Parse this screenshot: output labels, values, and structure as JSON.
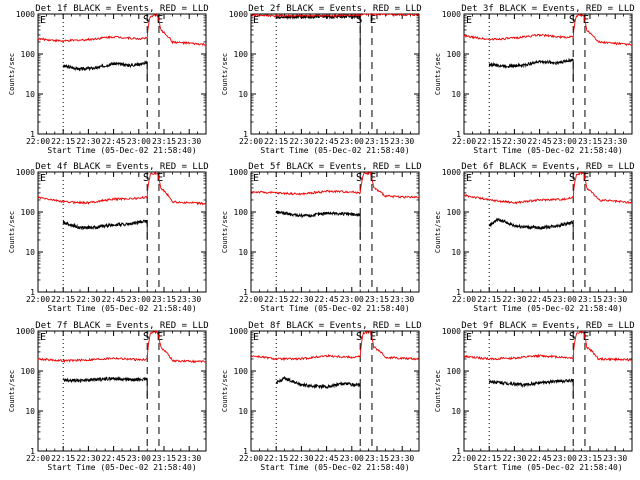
{
  "figure": {
    "panel_title_suffix": "BLACK = Events, RED = LLD",
    "xlabel": "Start Time (05-Dec-02 21:58:40)",
    "ylabel": "Counts/sec",
    "marker_S": "S",
    "marker_E": "E",
    "colors": {
      "events": "#000000",
      "lld": "#ee0000",
      "axes": "#000000"
    }
  },
  "chart_data": [
    {
      "type": "line",
      "title": "Det 1f BLACK = Events, RED = LLD",
      "xlabel": "Start Time (05-Dec-02 21:58:40)",
      "ylabel": "Counts/sec",
      "x_tick_labels": [
        "22:00",
        "22:15",
        "22:30",
        "22:45",
        "23:00",
        "23:15",
        "23:30"
      ],
      "y_tick_labels": [
        "1",
        "10",
        "100",
        "1000"
      ],
      "y_scale": "log",
      "ylim": [
        1,
        1000
      ],
      "xlim": [
        "22:00",
        "23:40"
      ],
      "dotted_line": "22:15",
      "dashed_lines": [
        "23:05",
        "23:12"
      ],
      "series": [
        {
          "name": "BLACK",
          "color": "#000000",
          "start": "22:15",
          "end": "23:05",
          "x": [
            "22:15",
            "22:25",
            "22:35",
            "22:45",
            "22:55",
            "23:05"
          ],
          "y": [
            50,
            42,
            45,
            58,
            52,
            60
          ]
        },
        {
          "name": "RED",
          "color": "#ee0000",
          "start": "22:00",
          "end": "23:40",
          "x": [
            "22:00",
            "22:15",
            "22:30",
            "22:45",
            "23:00",
            "23:05",
            "23:07",
            "23:11",
            "23:13",
            "23:20",
            "23:40"
          ],
          "y": [
            240,
            210,
            230,
            270,
            240,
            250,
            900,
            950,
            400,
            200,
            170
          ]
        }
      ]
    },
    {
      "type": "line",
      "title": "Det 2f BLACK = Events, RED = LLD",
      "xlabel": "Start Time (05-Dec-02 21:58:40)",
      "ylabel": "Counts/sec",
      "x_tick_labels": [
        "22:00",
        "22:15",
        "22:30",
        "22:45",
        "23:00",
        "23:15",
        "23:30"
      ],
      "y_tick_labels": [
        "1",
        "10",
        "100",
        "1000"
      ],
      "y_scale": "log",
      "ylim": [
        1,
        1000
      ],
      "xlim": [
        "22:00",
        "23:40"
      ],
      "dotted_line": "22:15",
      "dashed_lines": [
        "23:05",
        "23:12"
      ],
      "series": [
        {
          "name": "BLACK",
          "color": "#000000",
          "start": "22:15",
          "end": "23:05",
          "x": [
            "22:15",
            "22:25",
            "22:35",
            "22:45",
            "22:55",
            "23:05"
          ],
          "y": [
            850,
            850,
            850,
            860,
            860,
            870
          ]
        },
        {
          "name": "RED",
          "color": "#ee0000",
          "start": "22:00",
          "end": "23:40",
          "x": [
            "22:00",
            "22:15",
            "22:30",
            "22:45",
            "23:00",
            "23:05",
            "23:07",
            "23:11",
            "23:13",
            "23:20",
            "23:40"
          ],
          "y": [
            950,
            900,
            900,
            910,
            920,
            930,
            1000,
            1000,
            1000,
            950,
            950
          ]
        }
      ]
    },
    {
      "type": "line",
      "title": "Det 3f BLACK = Events, RED = LLD",
      "xlabel": "Start Time (05-Dec-02 21:58:40)",
      "ylabel": "Counts/sec",
      "x_tick_labels": [
        "22:00",
        "22:15",
        "22:30",
        "22:45",
        "23:00",
        "23:15",
        "23:30"
      ],
      "y_tick_labels": [
        "1",
        "10",
        "100",
        "1000"
      ],
      "y_scale": "log",
      "ylim": [
        1,
        1000
      ],
      "xlim": [
        "22:00",
        "23:40"
      ],
      "dotted_line": "22:15",
      "dashed_lines": [
        "23:05",
        "23:12"
      ],
      "series": [
        {
          "name": "BLACK",
          "color": "#000000",
          "start": "22:15",
          "end": "23:05",
          "x": [
            "22:15",
            "22:25",
            "22:35",
            "22:45",
            "22:55",
            "23:05"
          ],
          "y": [
            55,
            50,
            52,
            65,
            60,
            72
          ]
        },
        {
          "name": "RED",
          "color": "#ee0000",
          "start": "22:00",
          "end": "23:40",
          "x": [
            "22:00",
            "22:15",
            "22:30",
            "22:45",
            "23:00",
            "23:05",
            "23:07",
            "23:11",
            "23:13",
            "23:20",
            "23:40"
          ],
          "y": [
            280,
            230,
            250,
            300,
            260,
            270,
            900,
            950,
            400,
            200,
            170
          ]
        }
      ]
    },
    {
      "type": "line",
      "title": "Det 4f BLACK = Events, RED = LLD",
      "xlabel": "Start Time (05-Dec-02 21:58:40)",
      "ylabel": "Counts/sec",
      "x_tick_labels": [
        "22:00",
        "22:15",
        "22:30",
        "22:45",
        "23:00",
        "23:15",
        "23:30"
      ],
      "y_tick_labels": [
        "1",
        "10",
        "100",
        "1000"
      ],
      "y_scale": "log",
      "ylim": [
        1,
        1000
      ],
      "xlim": [
        "22:00",
        "23:40"
      ],
      "dotted_line": "22:15",
      "dashed_lines": [
        "23:05",
        "23:12"
      ],
      "series": [
        {
          "name": "BLACK",
          "color": "#000000",
          "start": "22:15",
          "end": "23:05",
          "x": [
            "22:15",
            "22:25",
            "22:35",
            "22:45",
            "22:55",
            "23:05"
          ],
          "y": [
            55,
            40,
            42,
            48,
            50,
            60
          ]
        },
        {
          "name": "RED",
          "color": "#ee0000",
          "start": "22:00",
          "end": "23:40",
          "x": [
            "22:00",
            "22:15",
            "22:30",
            "22:45",
            "23:00",
            "23:05",
            "23:07",
            "23:11",
            "23:13",
            "23:20",
            "23:40"
          ],
          "y": [
            230,
            180,
            170,
            210,
            220,
            240,
            900,
            950,
            400,
            180,
            160
          ]
        }
      ]
    },
    {
      "type": "line",
      "title": "Det 5f BLACK = Events, RED = LLD",
      "xlabel": "Start Time (05-Dec-02 21:58:40)",
      "ylabel": "Counts/sec",
      "x_tick_labels": [
        "22:00",
        "22:15",
        "22:30",
        "22:45",
        "23:00",
        "23:15",
        "23:30"
      ],
      "y_tick_labels": [
        "1",
        "10",
        "100",
        "1000"
      ],
      "y_scale": "log",
      "ylim": [
        1,
        1000
      ],
      "xlim": [
        "22:00",
        "23:40"
      ],
      "dotted_line": "22:15",
      "dashed_lines": [
        "23:05",
        "23:12"
      ],
      "series": [
        {
          "name": "BLACK",
          "color": "#000000",
          "start": "22:15",
          "end": "23:05",
          "x": [
            "22:15",
            "22:25",
            "22:35",
            "22:45",
            "22:55",
            "23:05"
          ],
          "y": [
            100,
            85,
            80,
            95,
            90,
            85
          ]
        },
        {
          "name": "RED",
          "color": "#ee0000",
          "start": "22:00",
          "end": "23:40",
          "x": [
            "22:00",
            "22:15",
            "22:30",
            "22:45",
            "23:00",
            "23:05",
            "23:07",
            "23:11",
            "23:13",
            "23:20",
            "23:40"
          ],
          "y": [
            320,
            300,
            280,
            330,
            320,
            300,
            900,
            950,
            400,
            250,
            230
          ]
        }
      ]
    },
    {
      "type": "line",
      "title": "Det 6f BLACK = Events, RED = LLD",
      "xlabel": "Start Time (05-Dec-02 21:58:40)",
      "ylabel": "Counts/sec",
      "x_tick_labels": [
        "22:00",
        "22:15",
        "22:30",
        "22:45",
        "23:00",
        "23:15",
        "23:30"
      ],
      "y_tick_labels": [
        "1",
        "10",
        "100",
        "1000"
      ],
      "y_scale": "log",
      "ylim": [
        1,
        1000
      ],
      "xlim": [
        "22:00",
        "23:40"
      ],
      "dotted_line": "22:15",
      "dashed_lines": [
        "23:05",
        "23:12"
      ],
      "series": [
        {
          "name": "BLACK",
          "color": "#000000",
          "start": "22:15",
          "end": "23:05",
          "x": [
            "22:15",
            "22:20",
            "22:30",
            "22:45",
            "22:55",
            "23:05"
          ],
          "y": [
            45,
            65,
            45,
            40,
            45,
            55
          ]
        },
        {
          "name": "RED",
          "color": "#ee0000",
          "start": "22:00",
          "end": "23:40",
          "x": [
            "22:00",
            "22:15",
            "22:30",
            "22:45",
            "23:00",
            "23:05",
            "23:07",
            "23:11",
            "23:13",
            "23:20",
            "23:40"
          ],
          "y": [
            260,
            200,
            170,
            200,
            210,
            230,
            900,
            950,
            400,
            200,
            170
          ]
        }
      ]
    },
    {
      "type": "line",
      "title": "Det 7f BLACK = Events, RED = LLD",
      "xlabel": "Start Time (05-Dec-02 21:58:40)",
      "ylabel": "Counts/sec",
      "x_tick_labels": [
        "22:00",
        "22:15",
        "22:30",
        "22:45",
        "23:00",
        "23:15",
        "23:30"
      ],
      "y_tick_labels": [
        "1",
        "10",
        "100",
        "1000"
      ],
      "y_scale": "log",
      "ylim": [
        1,
        1000
      ],
      "xlim": [
        "22:00",
        "23:40"
      ],
      "dotted_line": "22:15",
      "dashed_lines": [
        "23:05",
        "23:12"
      ],
      "series": [
        {
          "name": "BLACK",
          "color": "#000000",
          "start": "22:15",
          "end": "23:05",
          "x": [
            "22:15",
            "22:25",
            "22:35",
            "22:45",
            "22:55",
            "23:05"
          ],
          "y": [
            60,
            58,
            62,
            65,
            60,
            62
          ]
        },
        {
          "name": "RED",
          "color": "#ee0000",
          "start": "22:00",
          "end": "23:40",
          "x": [
            "22:00",
            "22:15",
            "22:30",
            "22:45",
            "23:00",
            "23:05",
            "23:07",
            "23:11",
            "23:13",
            "23:20",
            "23:40"
          ],
          "y": [
            200,
            180,
            190,
            210,
            190,
            200,
            900,
            950,
            400,
            180,
            170
          ]
        }
      ]
    },
    {
      "type": "line",
      "title": "Det 8f BLACK = Events, RED = LLD",
      "xlabel": "Start Time (05-Dec-02 21:58:40)",
      "ylabel": "Counts/sec",
      "x_tick_labels": [
        "22:00",
        "22:15",
        "22:30",
        "22:45",
        "23:00",
        "23:15",
        "23:30"
      ],
      "y_tick_labels": [
        "1",
        "10",
        "100",
        "1000"
      ],
      "y_scale": "log",
      "ylim": [
        1,
        1000
      ],
      "xlim": [
        "22:00",
        "23:40"
      ],
      "dotted_line": "22:15",
      "dashed_lines": [
        "23:05",
        "23:12"
      ],
      "series": [
        {
          "name": "BLACK",
          "color": "#000000",
          "start": "22:15",
          "end": "23:05",
          "x": [
            "22:15",
            "22:20",
            "22:30",
            "22:45",
            "22:55",
            "23:05"
          ],
          "y": [
            50,
            65,
            45,
            40,
            48,
            45
          ]
        },
        {
          "name": "RED",
          "color": "#ee0000",
          "start": "22:00",
          "end": "23:40",
          "x": [
            "22:00",
            "22:15",
            "22:30",
            "22:45",
            "23:00",
            "23:05",
            "23:07",
            "23:11",
            "23:13",
            "23:20",
            "23:40"
          ],
          "y": [
            240,
            200,
            200,
            240,
            220,
            230,
            900,
            950,
            400,
            220,
            200
          ]
        }
      ]
    },
    {
      "type": "line",
      "title": "Det 9f BLACK = Events, RED = LLD",
      "xlabel": "Start Time (05-Dec-02 21:58:40)",
      "ylabel": "Counts/sec",
      "x_tick_labels": [
        "22:00",
        "22:15",
        "22:30",
        "22:45",
        "23:00",
        "23:15",
        "23:30"
      ],
      "y_tick_labels": [
        "1",
        "10",
        "100",
        "1000"
      ],
      "y_scale": "log",
      "ylim": [
        1,
        1000
      ],
      "xlim": [
        "22:00",
        "23:40"
      ],
      "dotted_line": "22:15",
      "dashed_lines": [
        "23:05",
        "23:12"
      ],
      "series": [
        {
          "name": "BLACK",
          "color": "#000000",
          "start": "22:15",
          "end": "23:05",
          "x": [
            "22:15",
            "22:25",
            "22:35",
            "22:45",
            "22:55",
            "23:05"
          ],
          "y": [
            55,
            50,
            45,
            50,
            55,
            58
          ]
        },
        {
          "name": "RED",
          "color": "#ee0000",
          "start": "22:00",
          "end": "23:40",
          "x": [
            "22:00",
            "22:15",
            "22:30",
            "22:45",
            "23:00",
            "23:05",
            "23:07",
            "23:11",
            "23:13",
            "23:20",
            "23:40"
          ],
          "y": [
            230,
            200,
            210,
            240,
            220,
            210,
            900,
            950,
            400,
            200,
            190
          ]
        }
      ]
    }
  ]
}
